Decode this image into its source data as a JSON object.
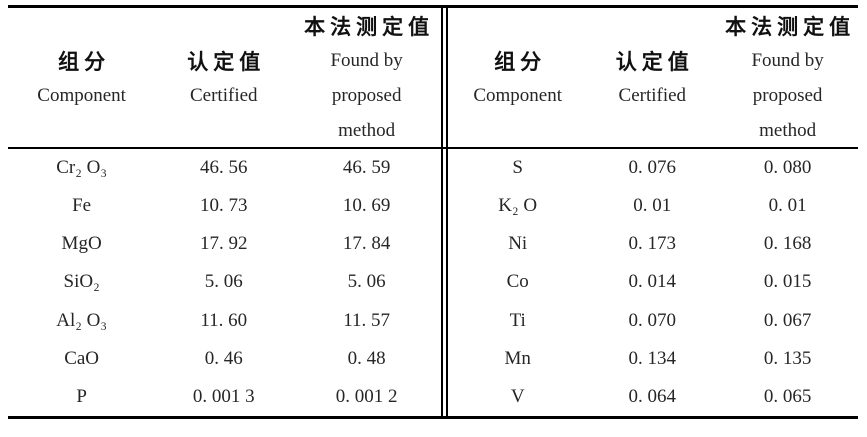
{
  "page": {
    "background_color": "#ffffff",
    "text_color": "#262626",
    "rule_color": "#000000"
  },
  "table": {
    "header": {
      "component_zh": "组分",
      "component_en": "Component",
      "certified_zh": "认定值",
      "certified_en": "Certified",
      "found_zh": "本法测定值",
      "found_en1": "Found by",
      "found_en2": "proposed",
      "found_en3": "method"
    },
    "left_rows": [
      {
        "component": "Cr₂ O₃",
        "certified": "46. 56",
        "found": "46. 59"
      },
      {
        "component": "Fe",
        "certified": "10. 73",
        "found": "10. 69"
      },
      {
        "component": "MgO",
        "certified": "17. 92",
        "found": "17. 84"
      },
      {
        "component": "SiO₂",
        "certified": "5. 06",
        "found": "5. 06"
      },
      {
        "component": "Al₂ O₃",
        "certified": "11. 60",
        "found": "11. 57"
      },
      {
        "component": "CaO",
        "certified": "0. 46",
        "found": "0. 48"
      },
      {
        "component": "P",
        "certified": "0. 001 3",
        "found": "0. 001 2"
      }
    ],
    "right_rows": [
      {
        "component": "S",
        "certified": "0. 076",
        "found": "0. 080"
      },
      {
        "component": "K₂ O",
        "certified": "0. 01",
        "found": "0. 01"
      },
      {
        "component": "Ni",
        "certified": "0. 173",
        "found": "0. 168"
      },
      {
        "component": "Co",
        "certified": "0. 014",
        "found": "0. 015"
      },
      {
        "component": "Ti",
        "certified": "0. 070",
        "found": "0. 067"
      },
      {
        "component": "Mn",
        "certified": "0. 134",
        "found": "0. 135"
      },
      {
        "component": "V",
        "certified": "0. 064",
        "found": "0. 065"
      }
    ]
  }
}
